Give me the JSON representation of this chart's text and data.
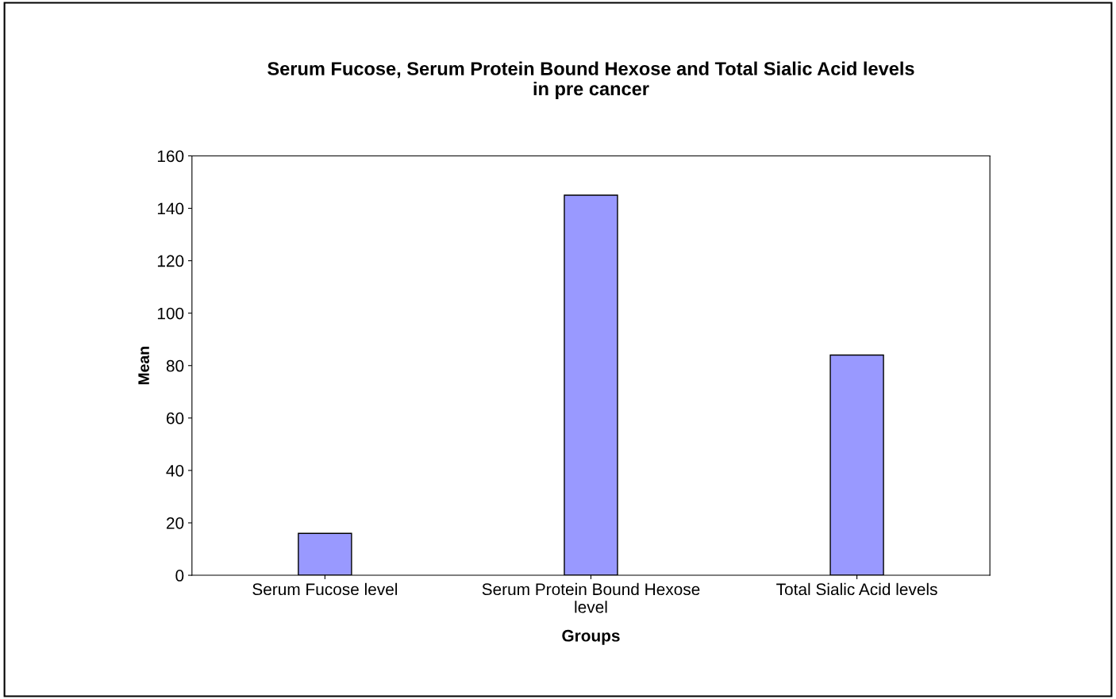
{
  "chart_data": {
    "type": "bar",
    "title": "Serum Fucose, Serum Protein Bound Hexose and Total Sialic Acid levels\nin pre cancer",
    "xlabel": "Groups",
    "ylabel": "Mean",
    "categories": [
      "Serum Fucose level",
      "Serum Protein Bound Hexose\nlevel",
      "Total Sialic Acid levels"
    ],
    "values": [
      16,
      145,
      84
    ],
    "color": "#9999ff",
    "ylim": [
      0,
      160
    ],
    "yticks": [
      0,
      20,
      40,
      60,
      80,
      100,
      120,
      140,
      160
    ],
    "grid": false
  }
}
